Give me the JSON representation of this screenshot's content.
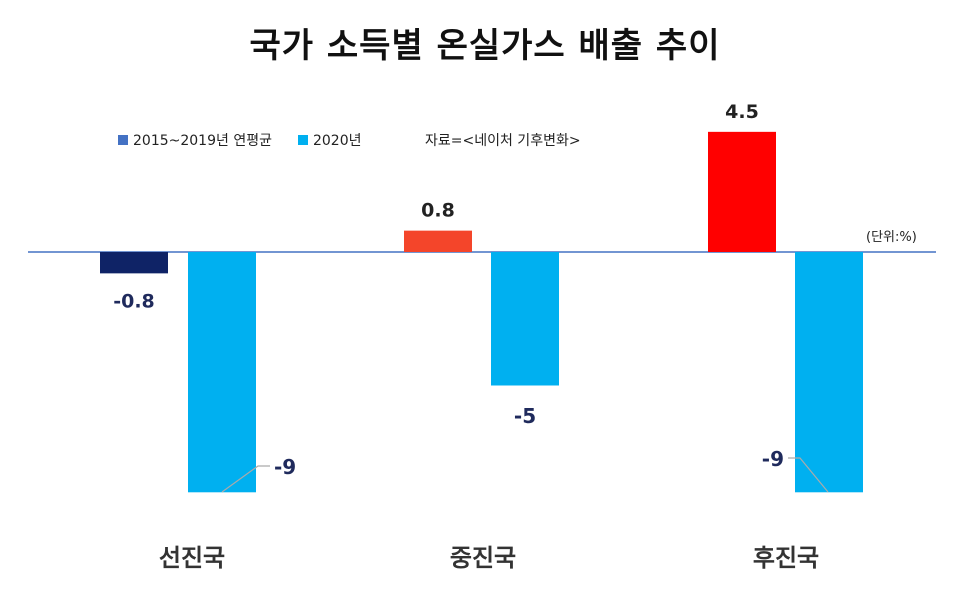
{
  "chart_data": {
    "type": "bar",
    "title": "국가 소득별 온실가스 배출 추이",
    "categories": [
      "선진국",
      "중진국",
      "후진국"
    ],
    "series": [
      {
        "name": "2015~2019년 연평균",
        "values": [
          -0.8,
          0.8,
          4.5
        ]
      },
      {
        "name": "2020년",
        "values": [
          -9,
          -5,
          -9
        ]
      }
    ],
    "value_labels": {
      "series0": [
        "-0.8",
        "0.8",
        "4.5"
      ],
      "series1": [
        "-9",
        "-5",
        "-9"
      ]
    },
    "ylim": [
      -10,
      5
    ],
    "grid": false,
    "legend_position": "top-left",
    "source_note": "자료=<네이처 기후변화>",
    "unit_note": "(단위:%)",
    "colors": {
      "series0_negative": "#0f2366",
      "series0_positive_mid": "#f4452a",
      "series0_positive_high": "#ff0000",
      "series1": "#00b0f0",
      "baseline": "#4472c4",
      "legend_series0": "#4472c4",
      "label_dark": "#1f2a5c"
    }
  }
}
